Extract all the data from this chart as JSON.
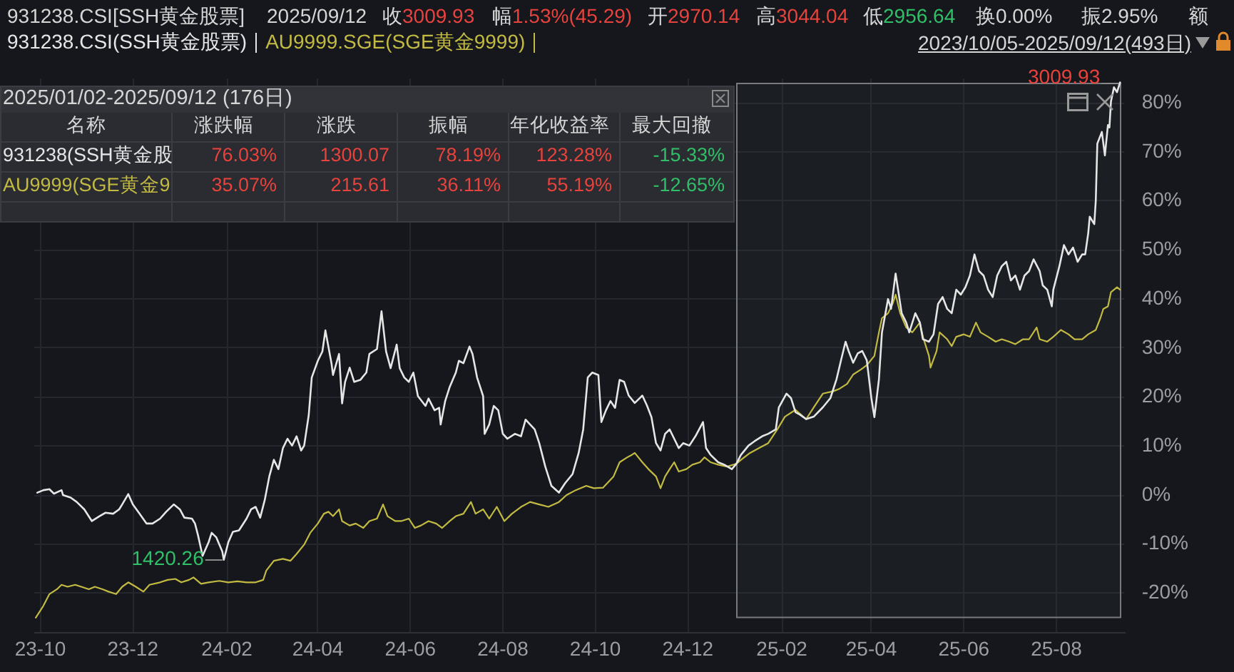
{
  "chart_data": {
    "type": "line",
    "title": "931238.CSI[SSH黄金股票]",
    "legend": "top left",
    "grid": true,
    "xlim": [
      "2023-09-27",
      "2025-09-15"
    ],
    "ylim": [
      -28,
      85
    ],
    "xticks": [
      {
        "value": "2023-10-01",
        "label": "23-10"
      },
      {
        "value": "2023-12-01",
        "label": "23-12"
      },
      {
        "value": "2024-02-01",
        "label": "24-02"
      },
      {
        "value": "2024-04-01",
        "label": "24-04"
      },
      {
        "value": "2024-06-01",
        "label": "24-06"
      },
      {
        "value": "2024-08-01",
        "label": "24-08"
      },
      {
        "value": "2024-10-01",
        "label": "24-10"
      },
      {
        "value": "2024-12-01",
        "label": "24-12"
      },
      {
        "value": "2025-02-01",
        "label": "25-02"
      },
      {
        "value": "2025-04-01",
        "label": "25-04"
      },
      {
        "value": "2025-06-01",
        "label": "25-06"
      },
      {
        "value": "2025-08-01",
        "label": "25-08"
      }
    ],
    "yticks": [
      {
        "value": -20,
        "label": "-20%"
      },
      {
        "value": -10,
        "label": "-10%"
      },
      {
        "value": 0,
        "label": "0%"
      },
      {
        "value": 10,
        "label": "10%"
      },
      {
        "value": 20,
        "label": "20%"
      },
      {
        "value": 30,
        "label": "30%"
      },
      {
        "value": 40,
        "label": "40%"
      },
      {
        "value": 50,
        "label": "50%"
      },
      {
        "value": 60,
        "label": "60%"
      },
      {
        "value": 70,
        "label": "70%"
      },
      {
        "value": 80,
        "label": "80%"
      }
    ],
    "bands": [
      {
        "axis": "x",
        "from": "2025-01-02",
        "to": "2025-09-12",
        "color": "#77797e"
      }
    ],
    "annotations": [
      "2025/09/12",
      "收",
      "3009.93",
      "幅",
      "1.53%(45.29)",
      "开",
      "2970.14",
      "高",
      "3044.04",
      "低",
      "2956.64",
      "换0.00%",
      "振2.95%",
      "额",
      "2023/10/05-2025/09/12(493日)",
      "2025/01/02-2025/09/12 (176日)",
      "名称",
      "涨跌幅",
      "涨跌",
      "振幅",
      "年化收益率",
      "最大回撤",
      "931238(SSH黄金股",
      "76.03%",
      "1300.07",
      "78.19%",
      "123.28%",
      "-15.33%",
      "AU9999(SGE黄金9",
      "35.07%",
      "215.61",
      "36.11%",
      "55.19%",
      "-12.65%",
      {
        "text": "1420.26",
        "x": "2024-01-30",
        "y": -13.2
      },
      {
        "text": "3009.93",
        "x": "2025-09-12",
        "y": 84.2
      }
    ],
    "series": [
      {
        "name": "931238.CSI(SSH黄金股票)",
        "color": "#e6e6e6",
        "x": [
          "2023-09-29",
          "2023-10-03",
          "2023-10-07",
          "2023-10-10",
          "2023-10-15",
          "2023-10-16",
          "2023-10-21",
          "2023-10-25",
          "2023-10-30",
          "2023-11-04",
          "2023-11-09",
          "2023-11-13",
          "2023-11-18",
          "2023-11-22",
          "2023-11-24",
          "2023-11-28",
          "2023-12-01",
          "2023-12-05",
          "2023-12-10",
          "2023-12-14",
          "2023-12-19",
          "2023-12-23",
          "2023-12-28",
          "2024-01-01",
          "2024-01-04",
          "2024-01-09",
          "2024-01-11",
          "2024-01-13",
          "2024-01-16",
          "2024-01-20",
          "2024-01-22",
          "2024-01-25",
          "2024-01-29",
          "2024-01-30",
          "2024-02-02",
          "2024-02-05",
          "2024-02-09",
          "2024-02-14",
          "2024-02-17",
          "2024-02-20",
          "2024-02-23",
          "2024-02-26",
          "2024-02-29",
          "2024-03-03",
          "2024-03-06",
          "2024-03-09",
          "2024-03-12",
          "2024-03-15",
          "2024-03-18",
          "2024-03-21",
          "2024-03-23",
          "2024-03-26",
          "2024-03-28",
          "2024-04-01",
          "2024-04-04",
          "2024-04-06",
          "2024-04-10",
          "2024-04-11",
          "2024-04-15",
          "2024-04-17",
          "2024-04-19",
          "2024-04-22",
          "2024-04-25",
          "2024-04-29",
          "2024-05-03",
          "2024-05-05",
          "2024-05-10",
          "2024-05-13",
          "2024-05-16",
          "2024-05-19",
          "2024-05-23",
          "2024-05-25",
          "2024-05-28",
          "2024-05-31",
          "2024-06-03",
          "2024-06-06",
          "2024-06-11",
          "2024-06-13",
          "2024-06-17",
          "2024-06-20",
          "2024-06-21",
          "2024-06-24",
          "2024-06-27",
          "2024-07-01",
          "2024-07-03",
          "2024-07-06",
          "2024-07-10",
          "2024-07-12",
          "2024-07-15",
          "2024-07-19",
          "2024-07-20",
          "2024-07-23",
          "2024-07-26",
          "2024-07-29",
          "2024-08-01",
          "2024-08-04",
          "2024-08-09",
          "2024-08-13",
          "2024-08-16",
          "2024-08-19",
          "2024-08-22",
          "2024-08-25",
          "2024-08-29",
          "2024-09-02",
          "2024-09-07",
          "2024-09-11",
          "2024-09-16",
          "2024-09-20",
          "2024-09-23",
          "2024-09-26",
          "2024-09-29",
          "2024-10-03",
          "2024-10-05",
          "2024-10-08",
          "2024-10-11",
          "2024-10-14",
          "2024-10-17",
          "2024-10-20",
          "2024-10-23",
          "2024-10-27",
          "2024-11-01",
          "2024-11-04",
          "2024-11-07",
          "2024-11-10",
          "2024-11-13",
          "2024-11-16",
          "2024-11-19",
          "2024-11-22",
          "2024-11-25",
          "2024-11-28",
          "2024-12-02",
          "2024-12-06",
          "2024-12-11",
          "2024-12-13",
          "2024-12-16",
          "2024-12-21",
          "2024-12-25",
          "2024-12-30",
          "2025-01-02",
          "2025-01-05",
          "2025-01-10",
          "2025-01-14",
          "2025-01-19",
          "2025-01-23",
          "2025-01-28",
          "2025-01-30",
          "2025-02-04",
          "2025-02-07",
          "2025-02-10",
          "2025-02-13",
          "2025-02-17",
          "2025-02-22",
          "2025-02-28",
          "2025-03-05",
          "2025-03-09",
          "2025-03-12",
          "2025-03-15",
          "2025-03-17",
          "2025-03-20",
          "2025-03-23",
          "2025-03-26",
          "2025-03-29",
          "2025-04-01",
          "2025-04-03",
          "2025-04-06",
          "2025-04-08",
          "2025-04-12",
          "2025-04-14",
          "2025-04-17",
          "2025-04-21",
          "2025-04-24",
          "2025-04-26",
          "2025-04-30",
          "2025-05-03",
          "2025-05-05",
          "2025-05-09",
          "2025-05-12",
          "2025-05-15",
          "2025-05-18",
          "2025-05-21",
          "2025-05-24",
          "2025-05-27",
          "2025-05-30",
          "2025-06-02",
          "2025-06-05",
          "2025-06-08",
          "2025-06-11",
          "2025-06-14",
          "2025-06-17",
          "2025-06-20",
          "2025-06-23",
          "2025-06-26",
          "2025-06-29",
          "2025-07-02",
          "2025-07-05",
          "2025-07-08",
          "2025-07-11",
          "2025-07-14",
          "2025-07-17",
          "2025-07-21",
          "2025-07-23",
          "2025-07-26",
          "2025-07-29",
          "2025-07-30",
          "2025-08-03",
          "2025-08-06",
          "2025-08-09",
          "2025-08-12",
          "2025-08-15",
          "2025-08-18",
          "2025-08-20",
          "2025-08-22",
          "2025-08-23",
          "2025-08-26",
          "2025-08-27",
          "2025-08-28",
          "2025-08-31",
          "2025-09-02",
          "2025-09-04",
          "2025-09-05",
          "2025-09-06",
          "2025-09-08",
          "2025-09-10",
          "2025-09-12"
        ],
        "values": [
          0.5,
          1.0,
          1.2,
          0.3,
          1.0,
          0.0,
          -0.5,
          -1.4,
          -2.9,
          -5.3,
          -4.3,
          -3.6,
          -3.8,
          -2.9,
          -1.9,
          0.2,
          -1.9,
          -3.6,
          -5.8,
          -5.8,
          -4.8,
          -3.4,
          -1.9,
          -2.9,
          -4.6,
          -4.8,
          -5.8,
          -8.2,
          -12.4,
          -9.6,
          -7.7,
          -8.6,
          -11.5,
          -13.2,
          -9.6,
          -7.5,
          -7.2,
          -4.8,
          -2.9,
          -2.4,
          -4.6,
          -1.0,
          3.8,
          7.2,
          5.3,
          9.6,
          11.5,
          10.1,
          12.0,
          9.1,
          10.1,
          16.3,
          24.0,
          27.4,
          29.3,
          33.6,
          26.9,
          24.5,
          28.8,
          18.7,
          23.1,
          26.0,
          23.1,
          23.5,
          25.0,
          28.8,
          29.8,
          37.5,
          29.3,
          25.9,
          30.7,
          25.9,
          24.0,
          23.1,
          25.0,
          20.2,
          18.2,
          19.7,
          17.3,
          17.8,
          14.4,
          19.2,
          22.1,
          25.0,
          27.4,
          26.9,
          30.3,
          28.8,
          24.0,
          20.2,
          12.5,
          14.4,
          18.2,
          17.3,
          12.5,
          11.5,
          12.5,
          12.0,
          15.4,
          14.4,
          13.4,
          10.6,
          5.8,
          1.9,
          0.5,
          2.4,
          4.3,
          8.6,
          13.4,
          24.0,
          25.0,
          24.5,
          14.9,
          17.3,
          19.2,
          17.8,
          23.5,
          23.1,
          20.3,
          18.8,
          20.3,
          18.3,
          15.9,
          10.6,
          9.1,
          12.5,
          13.4,
          11.5,
          9.6,
          10.6,
          10.1,
          12.0,
          14.9,
          9.6,
          8.2,
          6.7,
          6.2,
          5.3,
          6.4,
          8.2,
          10.1,
          11.0,
          12.0,
          12.5,
          13.4,
          17.9,
          20.7,
          19.8,
          16.9,
          16.4,
          15.5,
          16.0,
          17.9,
          19.8,
          23.6,
          27.5,
          31.3,
          29.4,
          27.0,
          28.9,
          29.4,
          27.5,
          19.8,
          15.9,
          23.6,
          33.2,
          40.0,
          38.0,
          45.2,
          37.1,
          35.2,
          33.2,
          37.1,
          35.2,
          31.8,
          31.3,
          32.8,
          39.0,
          40.4,
          38.0,
          37.1,
          41.9,
          40.9,
          42.4,
          44.8,
          49.1,
          45.7,
          44.8,
          41.9,
          40.4,
          44.8,
          46.7,
          47.6,
          43.8,
          44.8,
          41.9,
          44.8,
          45.7,
          48.1,
          45.7,
          42.8,
          41.9,
          38.5,
          41.9,
          46.7,
          51.0,
          49.1,
          50.5,
          47.6,
          49.1,
          49.1,
          53.4,
          56.8,
          55.3,
          60.1,
          71.7,
          74.1,
          69.3,
          75.5,
          75.0,
          80.3,
          83.2,
          82.2,
          84.2
        ]
      },
      {
        "name": "AU9999.SGE(SGE黄金9999)",
        "color": "#c2ba42",
        "x": [
          "2023-09-28",
          "2023-10-03",
          "2023-10-07",
          "2023-10-12",
          "2023-10-15",
          "2023-10-19",
          "2023-10-24",
          "2023-10-28",
          "2023-11-02",
          "2023-11-06",
          "2023-11-11",
          "2023-11-15",
          "2023-11-20",
          "2023-11-24",
          "2023-11-28",
          "2023-12-03",
          "2023-12-08",
          "2023-12-12",
          "2023-12-19",
          "2023-12-24",
          "2023-12-29",
          "2024-01-02",
          "2024-01-07",
          "2024-01-10",
          "2024-01-15",
          "2024-01-20",
          "2024-01-27",
          "2024-02-02",
          "2024-02-08",
          "2024-02-14",
          "2024-02-20",
          "2024-02-25",
          "2024-02-27",
          "2024-03-03",
          "2024-03-09",
          "2024-03-14",
          "2024-03-18",
          "2024-03-23",
          "2024-03-27",
          "2024-04-01",
          "2024-04-05",
          "2024-04-08",
          "2024-04-11",
          "2024-04-15",
          "2024-04-17",
          "2024-04-22",
          "2024-04-26",
          "2024-05-01",
          "2024-05-05",
          "2024-05-10",
          "2024-05-14",
          "2024-05-17",
          "2024-05-22",
          "2024-05-26",
          "2024-05-31",
          "2024-06-04",
          "2024-06-08",
          "2024-06-13",
          "2024-06-18",
          "2024-06-22",
          "2024-06-27",
          "2024-07-01",
          "2024-07-06",
          "2024-07-11",
          "2024-07-14",
          "2024-07-19",
          "2024-07-23",
          "2024-07-28",
          "2024-08-02",
          "2024-08-07",
          "2024-08-13",
          "2024-08-19",
          "2024-08-25",
          "2024-08-31",
          "2024-09-07",
          "2024-09-12",
          "2024-09-18",
          "2024-09-25",
          "2024-09-30",
          "2024-10-06",
          "2024-10-13",
          "2024-10-17",
          "2024-10-22",
          "2024-10-25",
          "2024-10-27",
          "2024-11-01",
          "2024-11-05",
          "2024-11-10",
          "2024-11-13",
          "2024-11-16",
          "2024-11-19",
          "2024-11-22",
          "2024-11-25",
          "2024-11-30",
          "2024-12-04",
          "2024-12-09",
          "2024-12-12",
          "2024-12-16",
          "2024-12-21",
          "2024-12-27",
          "2025-01-02",
          "2025-01-05",
          "2025-01-11",
          "2025-01-17",
          "2025-01-23",
          "2025-01-29",
          "2025-02-03",
          "2025-02-10",
          "2025-02-17",
          "2025-02-22",
          "2025-02-28",
          "2025-03-07",
          "2025-03-11",
          "2025-03-16",
          "2025-03-20",
          "2025-03-25",
          "2025-03-29",
          "2025-04-03",
          "2025-04-06",
          "2025-04-08",
          "2025-04-12",
          "2025-04-15",
          "2025-04-17",
          "2025-04-20",
          "2025-04-24",
          "2025-04-28",
          "2025-05-03",
          "2025-05-05",
          "2025-05-09",
          "2025-05-10",
          "2025-05-14",
          "2025-05-16",
          "2025-05-21",
          "2025-05-24",
          "2025-05-27",
          "2025-06-01",
          "2025-06-05",
          "2025-06-09",
          "2025-06-12",
          "2025-06-17",
          "2025-06-22",
          "2025-06-26",
          "2025-07-01",
          "2025-07-05",
          "2025-07-10",
          "2025-07-14",
          "2025-07-19",
          "2025-07-21",
          "2025-07-26",
          "2025-07-30",
          "2025-08-04",
          "2025-08-09",
          "2025-08-13",
          "2025-08-18",
          "2025-08-22",
          "2025-08-27",
          "2025-08-30",
          "2025-09-01",
          "2025-09-04",
          "2025-09-06",
          "2025-09-10",
          "2025-09-12"
        ],
        "values": [
          -25.0,
          -22.6,
          -20.2,
          -19.2,
          -18.3,
          -18.7,
          -18.3,
          -18.7,
          -19.2,
          -18.7,
          -19.2,
          -19.7,
          -20.2,
          -18.7,
          -17.8,
          -18.7,
          -19.7,
          -18.3,
          -17.8,
          -17.3,
          -17.1,
          -17.8,
          -17.3,
          -16.8,
          -18.1,
          -17.8,
          -17.5,
          -17.8,
          -17.6,
          -17.8,
          -17.8,
          -17.3,
          -15.4,
          -13.4,
          -13.0,
          -13.4,
          -12.0,
          -10.1,
          -7.7,
          -5.8,
          -3.8,
          -3.4,
          -4.3,
          -2.9,
          -5.3,
          -6.2,
          -5.8,
          -6.7,
          -5.3,
          -4.8,
          -1.9,
          -4.3,
          -5.3,
          -5.3,
          -4.8,
          -6.7,
          -6.2,
          -5.3,
          -5.8,
          -6.7,
          -5.3,
          -4.3,
          -3.8,
          -1.4,
          -3.8,
          -2.9,
          -4.8,
          -2.4,
          -5.3,
          -3.8,
          -2.4,
          -1.4,
          -1.9,
          -2.4,
          -1.4,
          0.0,
          1.0,
          1.9,
          1.4,
          1.5,
          3.8,
          6.7,
          7.7,
          8.2,
          8.6,
          6.7,
          5.3,
          3.8,
          1.4,
          3.8,
          5.3,
          6.7,
          4.8,
          5.3,
          6.2,
          6.7,
          7.7,
          6.7,
          6.2,
          5.8,
          6.4,
          7.2,
          8.6,
          9.6,
          10.6,
          13.4,
          16.0,
          17.4,
          15.5,
          17.9,
          20.7,
          21.2,
          21.7,
          22.7,
          24.6,
          25.6,
          26.5,
          28.4,
          33.2,
          36.1,
          37.1,
          39.0,
          40.9,
          37.1,
          34.2,
          33.2,
          35.2,
          32.3,
          28.4,
          26.0,
          29.4,
          33.2,
          31.8,
          30.4,
          32.3,
          32.8,
          32.3,
          35.2,
          33.2,
          32.3,
          31.3,
          31.8,
          31.3,
          30.8,
          31.8,
          31.8,
          34.2,
          31.8,
          31.3,
          32.3,
          33.7,
          32.8,
          31.8,
          31.8,
          32.8,
          33.7,
          36.1,
          38.0,
          38.5,
          41.4,
          42.4,
          41.9
        ]
      }
    ]
  }
}
